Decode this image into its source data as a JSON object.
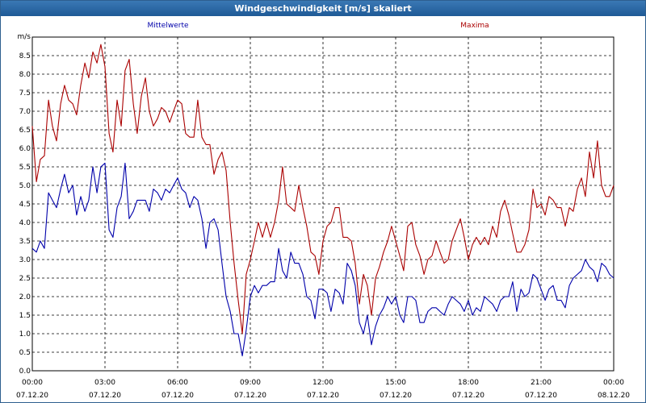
{
  "window": {
    "title": "Windgeschwindigkeit [m/s] skaliert"
  },
  "chart_data": {
    "type": "line",
    "title": "Windgeschwindigkeit [m/s] skaliert",
    "ylabel": "m/s",
    "ylim": [
      0,
      9.0
    ],
    "xlim_hours": [
      0,
      24
    ],
    "grid": true,
    "y_ticks": [
      "0.0",
      "0.5",
      "1.0",
      "1.5",
      "2.0",
      "2.5",
      "3.0",
      "3.5",
      "4.0",
      "4.5",
      "5.0",
      "5.5",
      "6.0",
      "6.5",
      "7.0",
      "7.5",
      "8.0",
      "8.5"
    ],
    "x_ticks": [
      {
        "time": "00:00",
        "date": "07.12.20"
      },
      {
        "time": "03:00",
        "date": "07.12.20"
      },
      {
        "time": "06:00",
        "date": "07.12.20"
      },
      {
        "time": "09:00",
        "date": "07.12.20"
      },
      {
        "time": "12:00",
        "date": "07.12.20"
      },
      {
        "time": "15:00",
        "date": "07.12.20"
      },
      {
        "time": "18:00",
        "date": "07.12.20"
      },
      {
        "time": "21:00",
        "date": "07.12.20"
      },
      {
        "time": "00:00",
        "date": "08.12.20"
      }
    ],
    "series": [
      {
        "name": "Mittelwerte",
        "color": "#0000aa",
        "x_hours": [
          0,
          0.17,
          0.33,
          0.5,
          0.67,
          0.83,
          1,
          1.17,
          1.33,
          1.5,
          1.67,
          1.83,
          2,
          2.17,
          2.33,
          2.5,
          2.67,
          2.83,
          3,
          3.17,
          3.33,
          3.5,
          3.67,
          3.83,
          4,
          4.17,
          4.33,
          4.5,
          4.67,
          4.83,
          5,
          5.17,
          5.33,
          5.5,
          5.67,
          5.83,
          6,
          6.17,
          6.33,
          6.5,
          6.67,
          6.83,
          7,
          7.17,
          7.33,
          7.5,
          7.67,
          7.83,
          8,
          8.17,
          8.33,
          8.5,
          8.67,
          8.83,
          9,
          9.17,
          9.33,
          9.5,
          9.67,
          9.83,
          10,
          10.17,
          10.33,
          10.5,
          10.67,
          10.83,
          11,
          11.17,
          11.33,
          11.5,
          11.67,
          11.83,
          12,
          12.17,
          12.33,
          12.5,
          12.67,
          12.83,
          13,
          13.17,
          13.33,
          13.5,
          13.67,
          13.83,
          14,
          14.17,
          14.33,
          14.5,
          14.67,
          14.83,
          15,
          15.17,
          15.33,
          15.5,
          15.67,
          15.83,
          16,
          16.17,
          16.33,
          16.5,
          16.67,
          16.83,
          17,
          17.17,
          17.33,
          17.5,
          17.67,
          17.83,
          18,
          18.17,
          18.33,
          18.5,
          18.67,
          18.83,
          19,
          19.17,
          19.33,
          19.5,
          19.67,
          19.83,
          20,
          20.17,
          20.33,
          20.5,
          20.67,
          20.83,
          21,
          21.17,
          21.33,
          21.5,
          21.67,
          21.83,
          22,
          22.17,
          22.33,
          22.5,
          22.67,
          22.83,
          23,
          23.17,
          23.33,
          23.5,
          23.67,
          23.83,
          24
        ],
        "values": [
          3.3,
          3.2,
          3.5,
          3.3,
          4.8,
          4.6,
          4.4,
          4.9,
          5.3,
          4.8,
          5.0,
          4.2,
          4.7,
          4.3,
          4.6,
          5.5,
          4.8,
          5.5,
          5.6,
          3.8,
          3.6,
          4.4,
          4.7,
          5.6,
          4.1,
          4.3,
          4.6,
          4.6,
          4.6,
          4.3,
          4.9,
          4.8,
          4.6,
          4.9,
          4.8,
          5.0,
          5.2,
          4.9,
          4.8,
          4.4,
          4.7,
          4.6,
          4.1,
          3.3,
          4.0,
          4.1,
          3.8,
          2.9,
          2.0,
          1.6,
          1.0,
          1.0,
          0.4,
          1.1,
          2.0,
          2.3,
          2.1,
          2.3,
          2.3,
          2.4,
          2.4,
          3.3,
          2.7,
          2.5,
          3.2,
          2.9,
          2.9,
          2.6,
          2.0,
          1.9,
          1.4,
          2.2,
          2.2,
          2.1,
          1.6,
          2.2,
          2.1,
          1.8,
          2.9,
          2.7,
          2.3,
          1.3,
          1.0,
          1.5,
          0.7,
          1.2,
          1.5,
          1.7,
          2.0,
          1.8,
          2.0,
          1.5,
          1.3,
          2.0,
          2.0,
          1.9,
          1.3,
          1.3,
          1.6,
          1.7,
          1.7,
          1.6,
          1.5,
          1.8,
          2.0,
          1.9,
          1.8,
          1.6,
          1.9,
          1.5,
          1.7,
          1.6,
          2.0,
          1.9,
          1.8,
          1.6,
          1.9,
          2.0,
          2.0,
          2.4,
          1.6,
          2.2,
          2.0,
          2.1,
          2.6,
          2.5,
          2.2,
          1.9,
          2.2,
          2.3,
          1.9,
          1.9,
          1.7,
          2.3,
          2.5,
          2.6,
          2.7,
          3.0,
          2.8,
          2.7,
          2.4,
          2.9,
          2.8,
          2.6,
          2.5
        ]
      },
      {
        "name": "Maxima",
        "color": "#aa0000",
        "x_hours": [
          0,
          0.17,
          0.33,
          0.5,
          0.67,
          0.83,
          1,
          1.17,
          1.33,
          1.5,
          1.67,
          1.83,
          2,
          2.17,
          2.33,
          2.5,
          2.67,
          2.83,
          3,
          3.17,
          3.33,
          3.5,
          3.67,
          3.83,
          4,
          4.17,
          4.33,
          4.5,
          4.67,
          4.83,
          5,
          5.17,
          5.33,
          5.5,
          5.67,
          5.83,
          6,
          6.17,
          6.33,
          6.5,
          6.67,
          6.83,
          7,
          7.17,
          7.33,
          7.5,
          7.67,
          7.83,
          8,
          8.17,
          8.33,
          8.5,
          8.67,
          8.83,
          9,
          9.17,
          9.33,
          9.5,
          9.67,
          9.83,
          10,
          10.17,
          10.33,
          10.5,
          10.67,
          10.83,
          11,
          11.17,
          11.33,
          11.5,
          11.67,
          11.83,
          12,
          12.17,
          12.33,
          12.5,
          12.67,
          12.83,
          13,
          13.17,
          13.33,
          13.5,
          13.67,
          13.83,
          14,
          14.17,
          14.33,
          14.5,
          14.67,
          14.83,
          15,
          15.17,
          15.33,
          15.5,
          15.67,
          15.83,
          16,
          16.17,
          16.33,
          16.5,
          16.67,
          16.83,
          17,
          17.17,
          17.33,
          17.5,
          17.67,
          17.83,
          18,
          18.17,
          18.33,
          18.5,
          18.67,
          18.83,
          19,
          19.17,
          19.33,
          19.5,
          19.67,
          19.83,
          20,
          20.17,
          20.33,
          20.5,
          20.67,
          20.83,
          21,
          21.17,
          21.33,
          21.5,
          21.67,
          21.83,
          22,
          22.17,
          22.33,
          22.5,
          22.67,
          22.83,
          23,
          23.17,
          23.33,
          23.5,
          23.67,
          23.83,
          24
        ],
        "values": [
          6.6,
          5.1,
          5.7,
          5.8,
          7.3,
          6.6,
          6.2,
          7.2,
          7.7,
          7.3,
          7.2,
          6.9,
          7.7,
          8.3,
          7.9,
          8.6,
          8.3,
          8.8,
          8.2,
          6.4,
          5.9,
          7.3,
          6.6,
          8.1,
          8.4,
          7.2,
          6.4,
          7.4,
          7.9,
          7.0,
          6.6,
          6.8,
          7.1,
          7.0,
          6.7,
          7.0,
          7.3,
          7.2,
          6.4,
          6.3,
          6.3,
          7.3,
          6.3,
          6.1,
          6.1,
          5.3,
          5.7,
          5.9,
          5.4,
          4.0,
          2.9,
          1.9,
          1.0,
          2.6,
          3.0,
          3.5,
          4.0,
          3.6,
          4.0,
          3.6,
          4.0,
          4.6,
          5.5,
          4.5,
          4.4,
          4.3,
          5.0,
          4.4,
          3.9,
          3.2,
          3.1,
          2.6,
          3.5,
          3.9,
          4.0,
          4.4,
          4.4,
          3.6,
          3.6,
          3.5,
          2.9,
          1.8,
          2.6,
          2.3,
          1.5,
          2.5,
          2.8,
          3.2,
          3.5,
          3.9,
          3.5,
          3.1,
          2.7,
          3.9,
          4.0,
          3.4,
          3.1,
          2.6,
          3.0,
          3.1,
          3.5,
          3.2,
          2.9,
          3.0,
          3.5,
          3.8,
          4.1,
          3.6,
          3.0,
          3.4,
          3.6,
          3.4,
          3.6,
          3.4,
          3.9,
          3.6,
          4.3,
          4.6,
          4.2,
          3.7,
          3.2,
          3.2,
          3.4,
          3.8,
          4.9,
          4.4,
          4.5,
          4.2,
          4.7,
          4.6,
          4.4,
          4.4,
          3.9,
          4.4,
          4.3,
          4.9,
          5.2,
          4.7,
          5.9,
          5.2,
          6.2,
          5.0,
          4.7,
          4.7,
          5.0
        ]
      }
    ]
  }
}
